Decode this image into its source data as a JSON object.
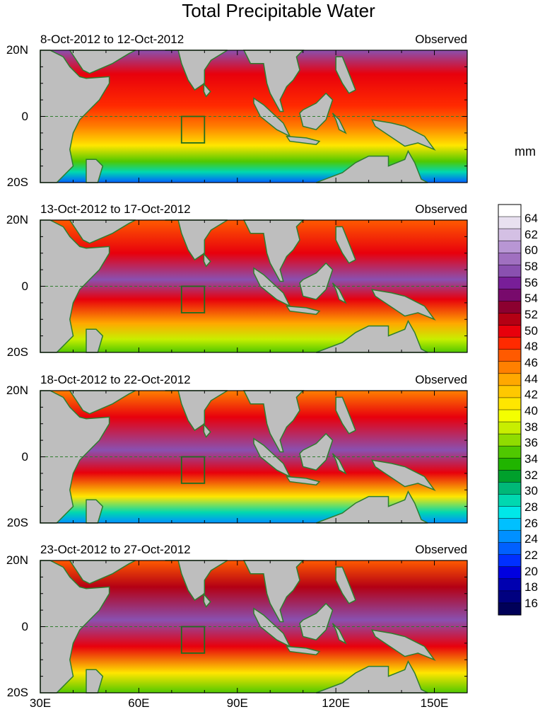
{
  "title": "Total Precipitable Water",
  "units": "mm",
  "panels": [
    {
      "period": "8-Oct-2012 to 12-Oct-2012",
      "label": "Observed"
    },
    {
      "period": "13-Oct-2012 to 17-Oct-2012",
      "label": "Observed"
    },
    {
      "period": "18-Oct-2012 to 22-Oct-2012",
      "label": "Observed"
    },
    {
      "period": "23-Oct-2012 to 27-Oct-2012",
      "label": "Observed"
    }
  ],
  "lat_labels": [
    "20N",
    "0",
    "20S"
  ],
  "lon_labels": [
    "30E",
    "60E",
    "90E",
    "120E",
    "150E"
  ],
  "colorbar": {
    "labels": [
      "64",
      "62",
      "60",
      "58",
      "56",
      "54",
      "52",
      "50",
      "48",
      "46",
      "44",
      "42",
      "40",
      "38",
      "36",
      "34",
      "32",
      "30",
      "28",
      "26",
      "24",
      "22",
      "20",
      "18",
      "16"
    ],
    "colors": [
      "#ffffff",
      "#e8e0f0",
      "#d4c0e4",
      "#b896d4",
      "#a070c0",
      "#8a50b0",
      "#781e98",
      "#780a6c",
      "#8c0030",
      "#b40014",
      "#e8000c",
      "#ff2a00",
      "#ff5a00",
      "#ff8000",
      "#ffa800",
      "#ffc800",
      "#ffe600",
      "#f4ff00",
      "#c8ee00",
      "#90dc00",
      "#50c800",
      "#20b400",
      "#00a02c",
      "#00b878",
      "#00d8b0",
      "#00e8e8",
      "#00c0ff",
      "#0090ff",
      "#0060ff",
      "#0030ff",
      "#0000e0",
      "#0000b0",
      "#000080",
      "#000058"
    ]
  },
  "region_box": {
    "lon": [
      73,
      80
    ],
    "lat": [
      -8,
      0
    ]
  },
  "map_extent": {
    "lon": [
      30,
      160
    ],
    "lat": [
      -20,
      20
    ]
  }
}
